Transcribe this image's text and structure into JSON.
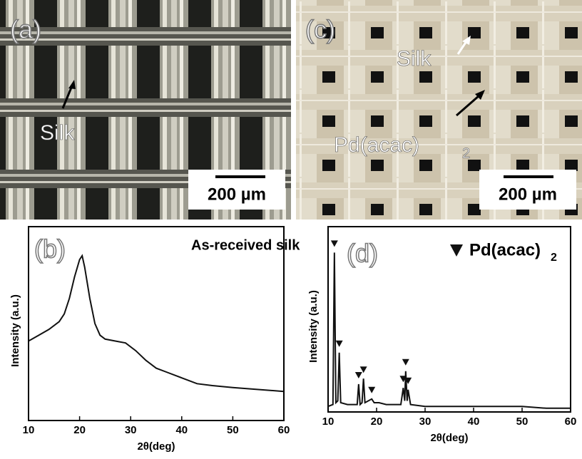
{
  "panels": [
    {
      "label": "(a)",
      "annotations": [
        "Silk"
      ],
      "scale_bar": "200 µm"
    },
    {
      "label": "(c)",
      "annotations": [
        "Silk",
        {
          "text": "Pd(acac)",
          "subscript": "2"
        }
      ],
      "scale_bar": "200 µm"
    }
  ],
  "chart_data": [
    {
      "type": "line",
      "panel_label": "(b)",
      "annotation": "As-received silk",
      "x_label": "2θ(deg)",
      "y_label": "Intensity (a.u.)",
      "xlim": [
        10,
        60
      ],
      "xticks": [
        10,
        20,
        30,
        40,
        50,
        60
      ],
      "ylim": [
        0,
        100
      ],
      "series": [
        {
          "color": "#111111",
          "x": [
            10,
            12,
            14,
            16,
            17,
            18,
            19,
            20,
            20.5,
            21,
            22,
            23,
            24,
            25,
            27,
            29,
            31,
            33,
            35,
            37,
            40,
            43,
            46,
            50,
            55,
            60
          ],
          "values": [
            41,
            44,
            47,
            51,
            55,
            63,
            74,
            83,
            85,
            79,
            63,
            50,
            44,
            42,
            41,
            40,
            36,
            31,
            27,
            25,
            22,
            19,
            18,
            17,
            16,
            15
          ]
        }
      ]
    },
    {
      "type": "line",
      "panel_label": "(d)",
      "x_label": "2θ(deg)",
      "y_label": "Intensity (a.u.)",
      "xlim": [
        10,
        60
      ],
      "xticks": [
        10,
        20,
        30,
        40,
        50,
        60
      ],
      "ylim": [
        0,
        100
      ],
      "series": [
        {
          "color": "#111111",
          "x": [
            10,
            11,
            11.3,
            11.6,
            12,
            12.3,
            12.6,
            14,
            16,
            16.3,
            16.6,
            17,
            17.3,
            17.6,
            19,
            19.5,
            20.5,
            22,
            25,
            25.5,
            25.8,
            26,
            26.3,
            26.5,
            27,
            30,
            35,
            40,
            45,
            50,
            55,
            60
          ],
          "values": [
            3,
            4,
            86,
            5,
            6,
            32,
            5,
            4,
            4,
            15,
            4,
            5,
            18,
            5,
            7,
            5,
            5,
            4,
            4,
            13,
            6,
            22,
            6,
            12,
            4,
            3,
            3,
            3,
            3,
            3,
            2,
            2
          ]
        },
        {
          "name": "Pd(acac)",
          "name_subscript": "2",
          "color": "#111111",
          "marker": "triangle",
          "x": [
            11.3,
            12.3,
            16.3,
            17.3,
            19,
            25.5,
            26,
            26.5
          ],
          "values": [
            86,
            32,
            15,
            18,
            7,
            13,
            22,
            12
          ]
        }
      ]
    }
  ]
}
